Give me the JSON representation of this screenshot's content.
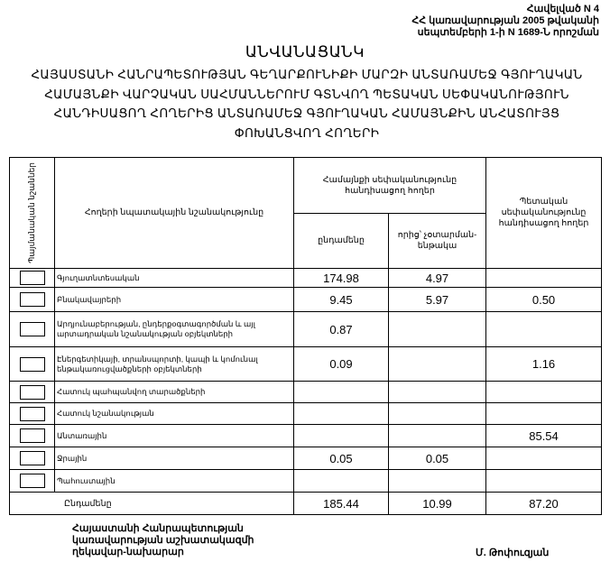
{
  "annex": {
    "line1": "Հավելված N 4",
    "line2": "ՀՀ կառավարության 2005 թվականի",
    "line3": "սեպտեմբերի 1-ի N 1689-Ն որոշման"
  },
  "title": "ԱՆՎԱՆԱՑԱՆԿ",
  "subtitle": "ՀԱՅԱՍՏԱՆԻ ՀԱՆՐԱՊԵՏՈՒԹՅԱՆ ԳԵՂԱՐՔՈՒՆԻՔԻ ՄԱՐԶԻ ԱՆՏԱՌԱՄԵՋ ԳՅՈՒՂԱԿԱՆ ՀԱՄԱՅՆՔԻ ՎԱՐՉԱԿԱՆ ՍԱՀՄԱՆՆԵՐՈՒՄ ԳՏՆՎՈՂ ՊԵՏԱԿԱՆ ՍԵՓԱԿԱՆՈՒԹՅՈՒՆ ՀԱՆԴԻՍԱՑՈՂ ՀՈՂԵՐԻՑ ԱՆՏԱՌԱՄԵՋ ԳՅՈՒՂԱԿԱՆ ՀԱՄԱՅՆՔԻՆ ԱՆՀԱՏՈՒՅՑ ՓՈԽԱՆՑՎՈՂ ՀՈՂԵՐԻ",
  "table": {
    "headers": {
      "symbols": "Պայմանական նշաններ",
      "purpose": "Հողերի նպատակային նշանակությունը",
      "community": "Համայնքի սեփականությունը հանդիսացող հողեր",
      "total": "ընդամենը",
      "non_alienable": "որից՝ չօտարման- ենթակա",
      "state": "Պետական սեփականությունը հանդիսացող հողեր"
    },
    "rows": [
      {
        "label": "Գյուղատնտեսական",
        "total": "174.98",
        "non_alienable": "4.97",
        "state": ""
      },
      {
        "label": "Բնակավայրերի",
        "total": "9.45",
        "non_alienable": "5.97",
        "state": "0.50"
      },
      {
        "label": "Արդյունաբերության, ընդերքօգտագործման և այլ արտադրական նշանակության օբյեկտների",
        "total": "0.87",
        "non_alienable": "",
        "state": ""
      },
      {
        "label": "Էներգետիկայի, տրանսպորտի, կապի և կոմունալ ենթակառուցվածքների օբյեկտների",
        "total": "0.09",
        "non_alienable": "",
        "state": "1.16"
      },
      {
        "label": "Հատուկ պահպանվող տարածքների",
        "total": "",
        "non_alienable": "",
        "state": ""
      },
      {
        "label": "Հատուկ նշանակության",
        "total": "",
        "non_alienable": "",
        "state": ""
      },
      {
        "label": "Անտառային",
        "total": "",
        "non_alienable": "",
        "state": "85.54"
      },
      {
        "label": "Ջրային",
        "total": "0.05",
        "non_alienable": "0.05",
        "state": ""
      },
      {
        "label": "Պահուստային",
        "total": "",
        "non_alienable": "",
        "state": ""
      }
    ],
    "totals": {
      "label": "Ընդամենը",
      "total": "185.44",
      "non_alienable": "10.99",
      "state": "87.20"
    }
  },
  "footer": {
    "line1": "Հայաստանի Հանրապետության",
    "line2": "կառավարության աշխատակազմի",
    "line3": "ղեկավար-նախարար",
    "signature": "Մ. Թոփուզյան"
  }
}
